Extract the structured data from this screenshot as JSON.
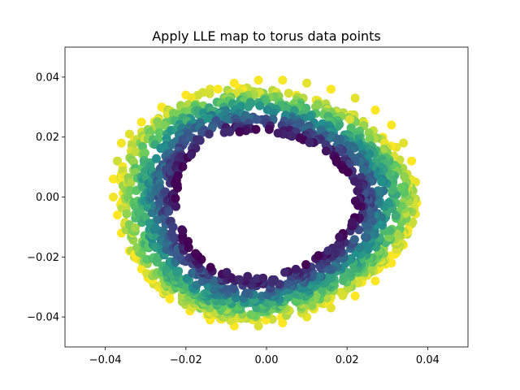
{
  "chart_data": {
    "type": "scatter",
    "title": "Apply LLE map to torus data points",
    "xlabel": "",
    "ylabel": "",
    "xlim": [
      -0.05,
      0.05
    ],
    "ylim": [
      -0.05,
      0.05
    ],
    "xticks": [
      -0.04,
      -0.02,
      0.0,
      0.02,
      0.04
    ],
    "yticks": [
      -0.04,
      -0.02,
      0.0,
      0.02,
      0.04
    ],
    "xtick_labels": [
      "−0.04",
      "−0.02",
      "0.00",
      "0.02",
      "0.04"
    ],
    "ytick_labels": [
      "−0.04",
      "−0.02",
      "0.00",
      "0.02",
      "0.04"
    ],
    "grid": false,
    "legend": "none",
    "colormap": "viridis",
    "colormap_stops": [
      "#440154",
      "#3b528b",
      "#21918c",
      "#5ec962",
      "#fde725"
    ],
    "marker_color_meaning": "radial position within the ring (inner dark purple to outer yellow)",
    "ring": {
      "center": [
        -0.001,
        -0.002
      ],
      "inner_rx": 0.022,
      "inner_ry": 0.024,
      "outer_rx": 0.037,
      "outer_ry": 0.039
    },
    "points": [
      [
        -0.036,
        0.018
      ],
      [
        -0.037,
        0.012
      ],
      [
        -0.038,
        0.006
      ],
      [
        -0.038,
        0.0
      ],
      [
        -0.037,
        -0.006
      ],
      [
        -0.036,
        -0.012
      ],
      [
        -0.034,
        -0.018
      ],
      [
        -0.031,
        -0.024
      ],
      [
        -0.028,
        -0.029
      ],
      [
        -0.024,
        -0.034
      ],
      [
        -0.019,
        -0.038
      ],
      [
        -0.014,
        -0.041
      ],
      [
        -0.008,
        -0.043
      ],
      [
        -0.002,
        -0.043
      ],
      [
        0.004,
        -0.042
      ],
      [
        0.01,
        -0.04
      ],
      [
        0.016,
        -0.037
      ],
      [
        0.022,
        -0.033
      ],
      [
        0.027,
        -0.028
      ],
      [
        0.031,
        -0.022
      ],
      [
        0.034,
        -0.016
      ],
      [
        0.036,
        -0.009
      ],
      [
        0.037,
        -0.002
      ],
      [
        0.037,
        0.005
      ],
      [
        0.036,
        0.012
      ],
      [
        0.034,
        0.018
      ],
      [
        0.031,
        0.024
      ],
      [
        0.027,
        0.029
      ],
      [
        0.022,
        0.033
      ],
      [
        0.016,
        0.036
      ],
      [
        0.01,
        0.038
      ],
      [
        0.004,
        0.039
      ],
      [
        -0.002,
        0.039
      ],
      [
        -0.008,
        0.038
      ],
      [
        -0.014,
        0.036
      ],
      [
        -0.02,
        0.034
      ],
      [
        -0.026,
        0.03
      ],
      [
        -0.031,
        0.025
      ],
      [
        -0.034,
        0.021
      ]
    ]
  }
}
